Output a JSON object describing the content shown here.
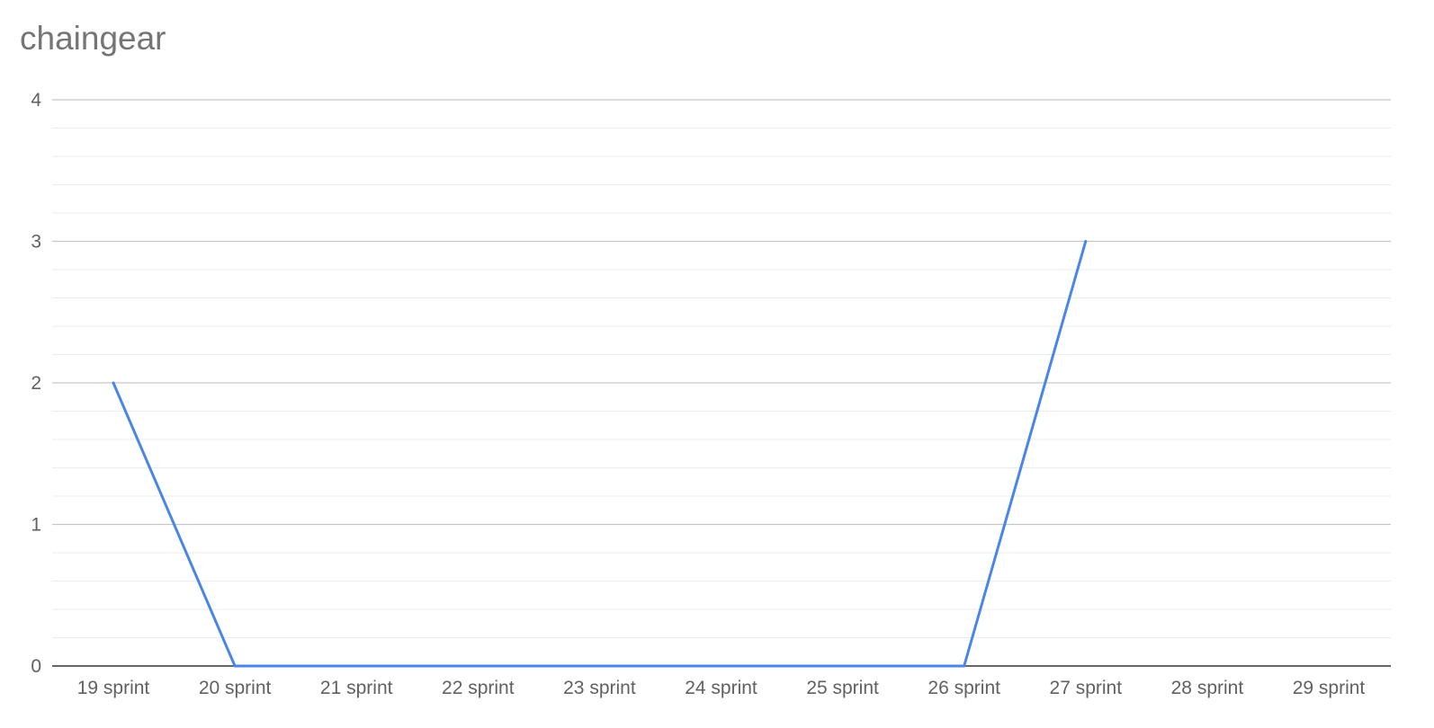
{
  "chart_data": {
    "type": "line",
    "title": "chaingear",
    "categories": [
      "19 sprint",
      "20 sprint",
      "21 sprint",
      "22 sprint",
      "23 sprint",
      "24 sprint",
      "25 sprint",
      "26 sprint",
      "27 sprint",
      "28 sprint",
      "29 sprint"
    ],
    "series": [
      {
        "values": [
          2,
          0,
          0,
          0,
          0,
          0,
          0,
          0,
          3,
          null,
          null
        ]
      }
    ],
    "y_ticks": [
      "0",
      "1",
      "2",
      "3",
      "4"
    ],
    "ylim": [
      0,
      4
    ],
    "minor_gridlines_per_major": 5,
    "grid": true,
    "legend": "none",
    "colors": {
      "series_line": "#4a86e8",
      "major_grid": "#c6c6c6",
      "minor_grid": "#ebebeb",
      "baseline": "#333333",
      "tick_label": "#616161",
      "title": "#757575"
    }
  }
}
